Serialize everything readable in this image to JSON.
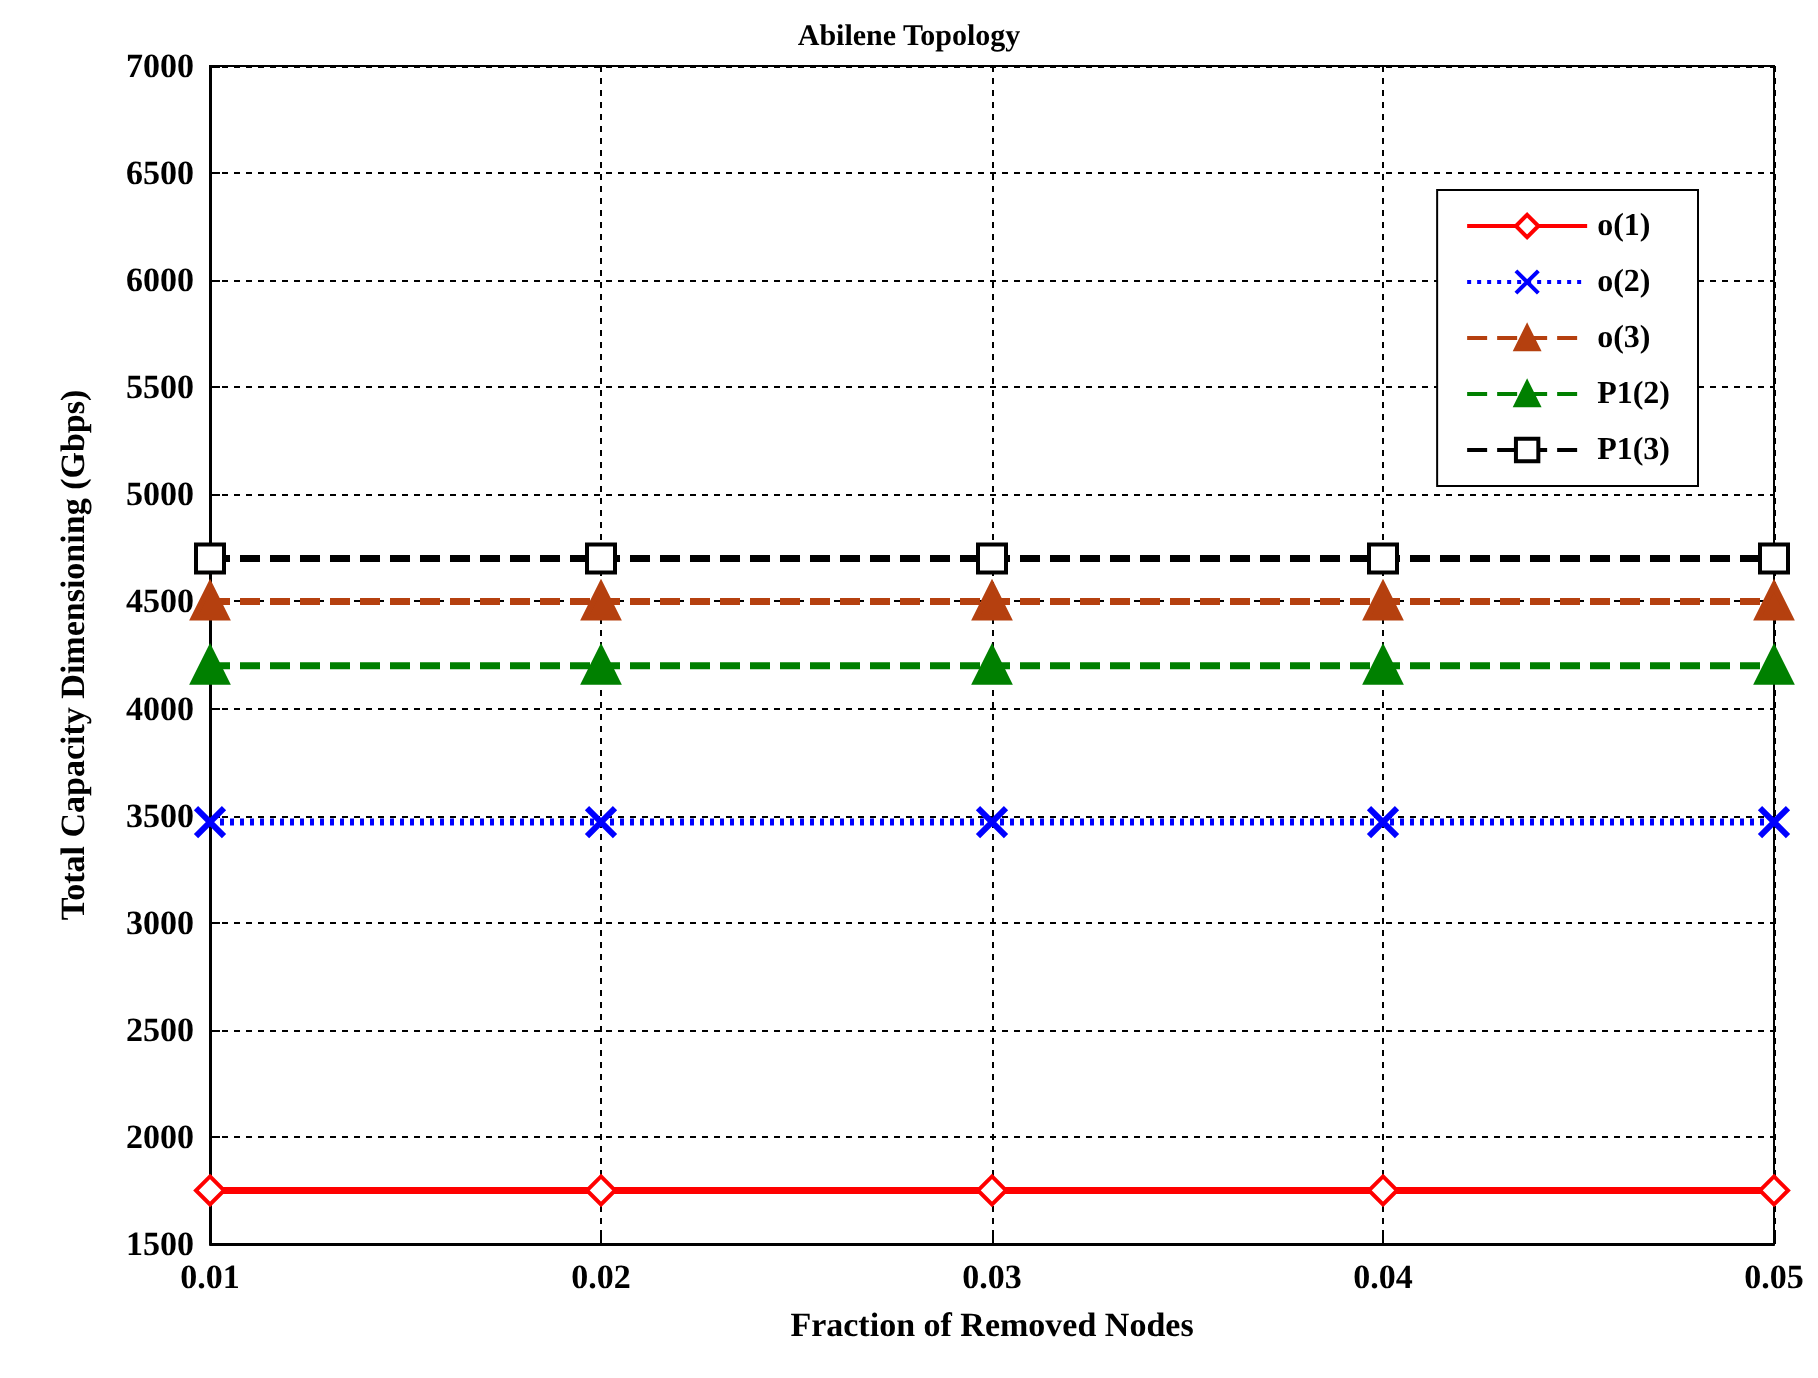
{
  "chart_data": {
    "type": "line",
    "title": "Abilene Topology",
    "xlabel": "Fraction of Removed Nodes",
    "ylabel": "Total Capacity Dimensioning (Gbps)",
    "x": [
      0.01,
      0.02,
      0.03,
      0.04,
      0.05
    ],
    "series": [
      {
        "name": "o(1)",
        "color": "#ff0000",
        "values": [
          1750,
          1750,
          1750,
          1750,
          1750
        ],
        "marker": "diamond",
        "line_style": "solid"
      },
      {
        "name": "o(2)",
        "color": "#0000ff",
        "values": [
          3470,
          3470,
          3470,
          3470,
          3470
        ],
        "marker": "cross",
        "line_style": "dotted"
      },
      {
        "name": "o(3)",
        "color": "#b5400f",
        "values": [
          4500,
          4500,
          4500,
          4500,
          4500
        ],
        "marker": "triangle",
        "line_style": "dashed"
      },
      {
        "name": "P1(2)",
        "color": "#008000",
        "values": [
          4200,
          4200,
          4200,
          4200,
          4200
        ],
        "marker": "triangle",
        "line_style": "dashed"
      },
      {
        "name": "P1(3)",
        "color": "#000000",
        "values": [
          4700,
          4700,
          4700,
          4700,
          4700
        ],
        "marker": "square",
        "line_style": "dashed"
      }
    ],
    "xlim": [
      0.01,
      0.05
    ],
    "xticks": [
      0.01,
      0.02,
      0.03,
      0.04,
      0.05
    ],
    "ylim": [
      1500,
      7000
    ],
    "yticks": [
      1500,
      2000,
      2500,
      3000,
      3500,
      4000,
      4500,
      5000,
      5500,
      6000,
      6500,
      7000
    ],
    "grid": true,
    "legend": "top right"
  }
}
